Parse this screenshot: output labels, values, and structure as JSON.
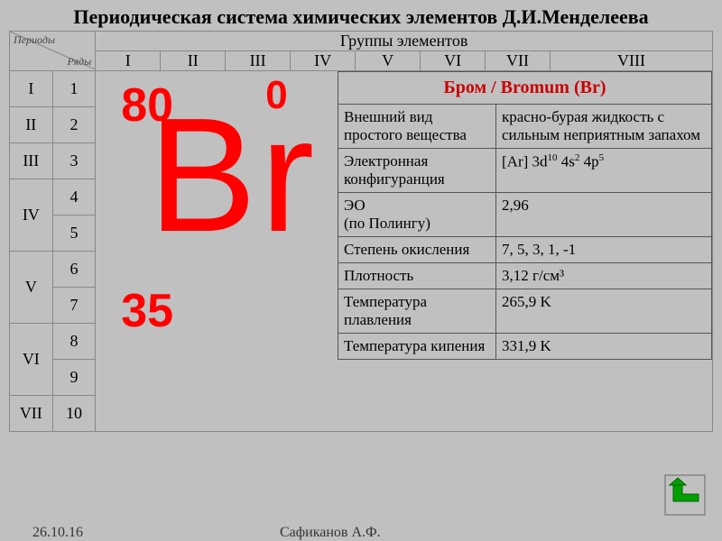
{
  "title": "Периодическая система химических элементов Д.И.Менделеева",
  "labels": {
    "periods": "Периоды",
    "rows": "Ряды",
    "groups_header": "Группы элементов"
  },
  "groups": [
    "I",
    "II",
    "III",
    "IV",
    "V",
    "VI",
    "VII",
    "VIII"
  ],
  "period_rows": [
    {
      "period": "I",
      "rows": [
        "1"
      ]
    },
    {
      "period": "II",
      "rows": [
        "2"
      ]
    },
    {
      "period": "III",
      "rows": [
        "3"
      ]
    },
    {
      "period": "IV",
      "rows": [
        "4",
        "5"
      ]
    },
    {
      "period": "V",
      "rows": [
        "6",
        "7"
      ]
    },
    {
      "period": "VI",
      "rows": [
        "8",
        "9"
      ]
    },
    {
      "period": "VII",
      "rows": [
        "10"
      ]
    }
  ],
  "element": {
    "mass": "80",
    "charge": "0",
    "symbol": "Br",
    "number": "35",
    "name_header": "Бром / Bromum (Br)",
    "properties": [
      {
        "k": "Внешний вид простого вещества",
        "v": "красно-бурая жидкость с сильным неприятным запахом"
      },
      {
        "k": "Электронная конфигуранция",
        "v": "[Ar] 3d<sup>10</sup> 4s<sup>2</sup> 4p<sup>5</sup>",
        "html": true
      },
      {
        "k": " ЭО\n(по Полингу)",
        "v": "2,96"
      },
      {
        "k": "Степень окисления",
        "v": "7, 5, 3, 1, -1"
      },
      {
        "k": "Плотность",
        "v": "3,12 г/см³"
      },
      {
        "k": "Температура плавления",
        "v": "265,9 K"
      },
      {
        "k": "Температура кипения",
        "v": "331,9 K"
      }
    ]
  },
  "footer": {
    "date": "26.10.16",
    "author": "Сафиканов А.Ф."
  },
  "colors": {
    "accent": "#ff0000",
    "header_red": "#cc0000",
    "bg": "#c0c0c0",
    "border": "#888"
  }
}
